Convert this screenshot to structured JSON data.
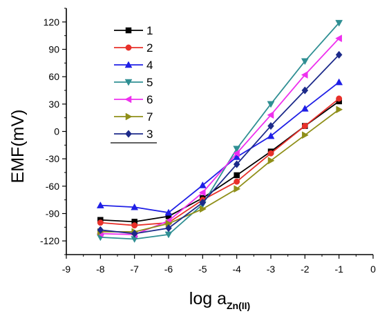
{
  "chart_data": {
    "type": "line",
    "xlabel": "log a",
    "xlabel_sub": "Zn(II)",
    "ylabel": "EMF(mV)",
    "xlim": [
      -9,
      0
    ],
    "ylim": [
      -135,
      135
    ],
    "xticks": [
      "-9",
      "-8",
      "-7",
      "-6",
      "-5",
      "-4",
      "-3",
      "-2",
      "-1",
      "0"
    ],
    "yticks": [
      "120",
      "90",
      "60",
      "30",
      "0",
      "-30",
      "-60",
      "-90",
      "-120"
    ],
    "grid": false,
    "legend": "top-center",
    "x": [
      -8,
      -7,
      -6,
      -5,
      -4,
      -3,
      -2,
      -1
    ],
    "series": [
      {
        "name": "1",
        "color": "#000000",
        "marker": "square",
        "values": [
          -97,
          -99,
          -93,
          -73,
          -48,
          -22,
          6,
          33
        ]
      },
      {
        "name": "2",
        "color": "#e8302a",
        "marker": "circle",
        "values": [
          -100,
          -103,
          -100,
          -75,
          -55,
          -24,
          6,
          36
        ]
      },
      {
        "name": "4",
        "color": "#1f1fe6",
        "marker": "triangle-up",
        "values": [
          -81,
          -83,
          -89,
          -59,
          -28,
          -5,
          25,
          54
        ]
      },
      {
        "name": "5",
        "color": "#2f8f93",
        "marker": "triangle-down",
        "values": [
          -116,
          -118,
          -113,
          -80,
          -19,
          30,
          77,
          119
        ]
      },
      {
        "name": "6",
        "color": "#ee30ee",
        "marker": "triangle-left",
        "values": [
          -112,
          -113,
          -98,
          -67,
          -24,
          18,
          62,
          102
        ]
      },
      {
        "name": "7",
        "color": "#8f8f18",
        "marker": "triangle-right",
        "values": [
          -110,
          -110,
          -101,
          -85,
          -63,
          -32,
          -4,
          24
        ]
      },
      {
        "name": "3",
        "color": "#1c2a8a",
        "marker": "diamond",
        "values": [
          -108,
          -112,
          -106,
          -78,
          -36,
          6,
          45,
          84
        ]
      }
    ]
  }
}
